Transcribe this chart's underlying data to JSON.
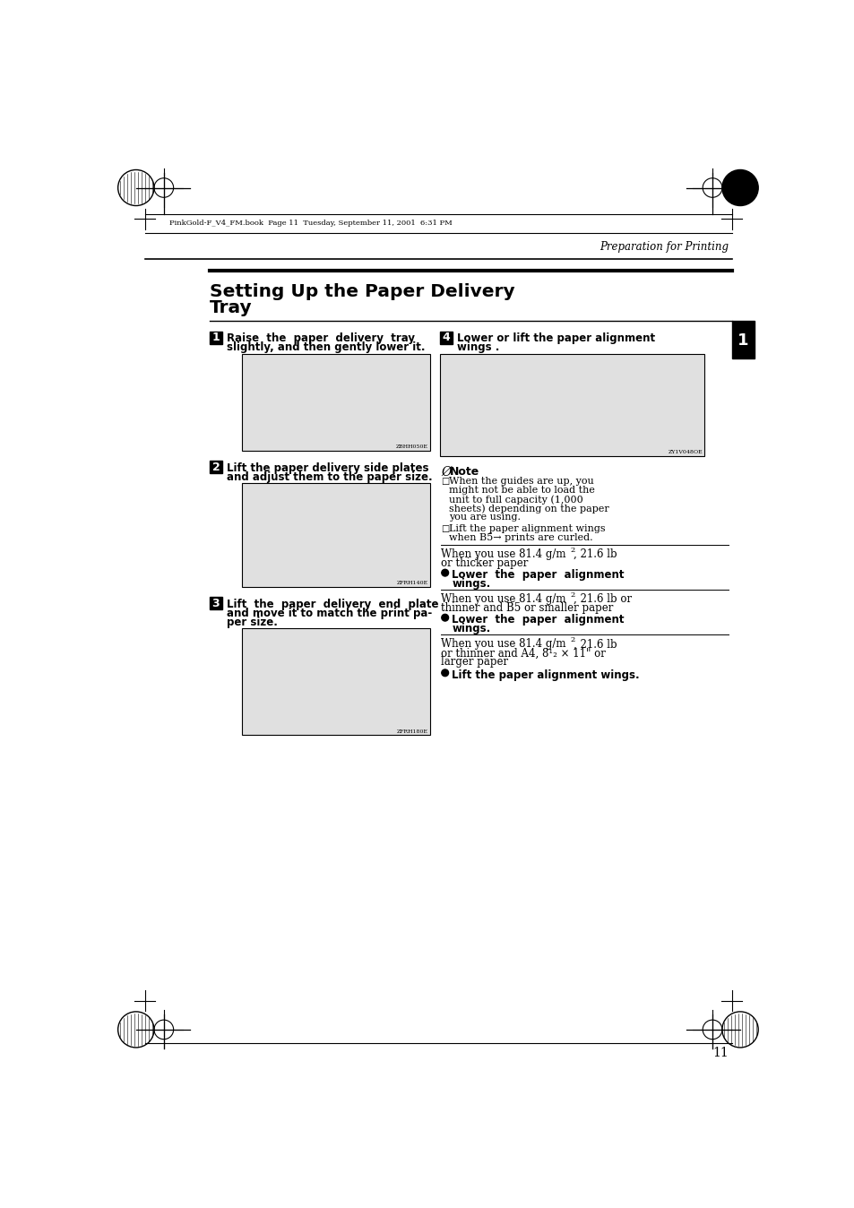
{
  "bg_color": "#ffffff",
  "header_text": "PinkGold-F_V4_FM.book  Page 11  Tuesday, September 11, 2001  6:31 PM",
  "header_right": "Preparation for Printing",
  "title_line1": "Setting Up the Paper Delivery",
  "title_line2": "Tray",
  "step1_text1": "Raise  the  paper  delivery  tray",
  "step1_text2": "slightly, and then gently lower it.",
  "step1_img_code": "ZBHH050E",
  "step2_text1": "Lift the paper delivery side plates",
  "step2_text2": "and adjust them to the paper size.",
  "step2_img_code": "ZFRH140E",
  "step3_text1": "Lift  the  paper  delivery  end  plate",
  "step3_text2": "and move it to match the print pa-",
  "step3_text3": "per size.",
  "step3_img_code": "ZFRH180E",
  "step4_text1": "Lower or lift the paper alignment",
  "step4_text2": "wings .",
  "step4_img_code": "ZY1V048OE",
  "note_title": "Note",
  "note1_line1": "When the guides are up, you",
  "note1_line2": "might not be able to load the",
  "note1_line3": "unit to full capacity (1,000",
  "note1_line4": "sheets) depending on the paper",
  "note1_line5": "you are using.",
  "note2_line1": "Lift the paper alignment wings",
  "note2_line2": "when B5→ prints are curled.",
  "sec1_line1": "When you use 81.4 g/m",
  "sec1_sup1": "2",
  "sec1_line1b": ", 21.6 lb",
  "sec1_line2": "or thicker paper",
  "sec1_bullet1": "Lower  the  paper  alignment",
  "sec1_bullet2": "wings.",
  "sec2_line1": "When you use 81.4 g/m",
  "sec2_sup1": "2",
  "sec2_line1b": ", 21.6 lb or",
  "sec2_line2": "thinner and B5 or smaller paper",
  "sec2_bullet1": "Lower  the  paper  alignment",
  "sec2_bullet2": "wings.",
  "sec3_line1": "When you use 81.4 g/m",
  "sec3_sup1": "2",
  "sec3_line1b": ", 21.6 lb",
  "sec3_line2": "or thinner and A4, 8¹₂ × 11\" or",
  "sec3_line3": "larger paper",
  "sec3_bullet1": "Lift the paper alignment wings.",
  "page_number": "11",
  "tab_text": "1"
}
